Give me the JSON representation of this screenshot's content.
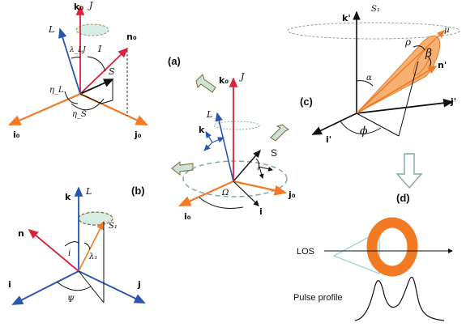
{
  "panels": {
    "a": "(a)",
    "b": "(b)",
    "c": "(c)",
    "d": "(d)"
  },
  "top_left": {
    "k0": "k₀",
    "J": "J",
    "L": "L",
    "lambda_LJ": "λ_LJ",
    "I": "I",
    "n0": "n₀",
    "S": "S",
    "eta_L": "η_L",
    "eta_S": "η_S",
    "i0": "i₀",
    "j0": "j₀"
  },
  "center": {
    "k0": "k₀",
    "J": "J",
    "L": "L",
    "k": "k",
    "S": "S",
    "Omega": "Ω",
    "i0": "i₀",
    "j0": "j₀",
    "i": "i"
  },
  "bottom_left": {
    "k": "k",
    "L": "L",
    "S1": "S₁",
    "n": "n",
    "i_angle": "i",
    "lambda1": "λ₁",
    "i": "i",
    "j": "j",
    "Psi": "Ψ"
  },
  "top_right": {
    "kp": "k'",
    "S1": "S₁",
    "rho": "ρ",
    "mu": "μ",
    "beta": "β",
    "np": "n'",
    "alpha": "α",
    "jp": "j'",
    "ip": "i'",
    "phi": "ϕ"
  },
  "bottom_right": {
    "LOS": "LOS",
    "pulse_profile": "Pulse profile"
  },
  "colors": {
    "red": "#d8243a",
    "blue": "#2a56b0",
    "orange": "#f07a26",
    "black": "#111111",
    "teal": "#7fa8a8",
    "arrow_fill": "#cfe0d8",
    "arrow_stroke": "#7a6a2a",
    "ellipse_fill": "#d8ece6",
    "cone_fill": "#f6b070",
    "ring": "#f27a22",
    "cone_line": "#9fd6d6"
  }
}
